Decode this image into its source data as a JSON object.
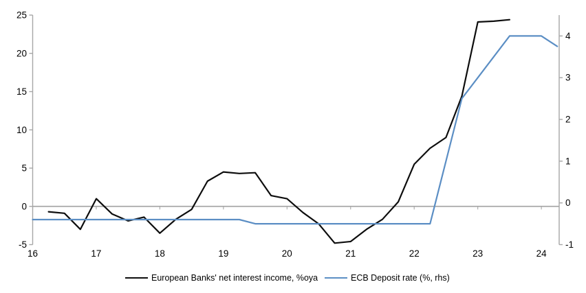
{
  "colors": {
    "background": "#ffffff",
    "axis": "#a6a6a6",
    "zero_line": "#a6a6a6",
    "text": "#000000",
    "nii_series": "#0d0d0d",
    "ecb_series": "#5b8ec4"
  },
  "chart_data": {
    "type": "line",
    "title": "",
    "xlabel": "",
    "ylabel_left": "",
    "ylabel_right": "",
    "grid": "off",
    "legend_position": "bottom",
    "x_axis": {
      "min": 16,
      "max": 24.28,
      "ticks": [
        16,
        17,
        18,
        19,
        20,
        21,
        22,
        23,
        24
      ]
    },
    "left_axis": {
      "min": -5,
      "max": 25,
      "ticks": [
        25,
        20,
        15,
        10,
        5,
        0,
        -5
      ]
    },
    "right_axis": {
      "min": -1,
      "max": 4.5,
      "ticks": [
        4,
        3,
        2,
        1,
        0,
        -1
      ]
    },
    "series": [
      {
        "name": "European Banks' net interest income, %oya",
        "axis": "left",
        "color": "#0d0d0d",
        "x": [
          16.25,
          16.5,
          16.75,
          17.0,
          17.25,
          17.5,
          17.75,
          18.0,
          18.25,
          18.5,
          18.75,
          19.0,
          19.25,
          19.5,
          19.75,
          20.0,
          20.25,
          20.5,
          20.75,
          21.0,
          21.25,
          21.5,
          21.75,
          22.0,
          22.25,
          22.5,
          22.75,
          23.0,
          23.25,
          23.5
        ],
        "values": [
          -0.7,
          -0.9,
          -3.0,
          1.0,
          -1.0,
          -1.9,
          -1.4,
          -3.5,
          -1.7,
          -0.4,
          3.3,
          4.5,
          4.3,
          4.4,
          1.4,
          1.0,
          -0.8,
          -2.3,
          -4.8,
          -4.6,
          -3.0,
          -1.7,
          0.6,
          5.5,
          7.6,
          9.0,
          14.4,
          24.1,
          24.2,
          24.4
        ]
      },
      {
        "name": "ECB Deposit rate (%, rhs)",
        "axis": "right",
        "color": "#5b8ec4",
        "x": [
          16.0,
          19.25,
          19.5,
          22.25,
          22.75,
          23.0,
          23.5,
          24.0,
          24.25
        ],
        "values": [
          -0.4,
          -0.4,
          -0.5,
          -0.5,
          2.5,
          3.0,
          4.0,
          4.0,
          3.75
        ]
      }
    ]
  }
}
